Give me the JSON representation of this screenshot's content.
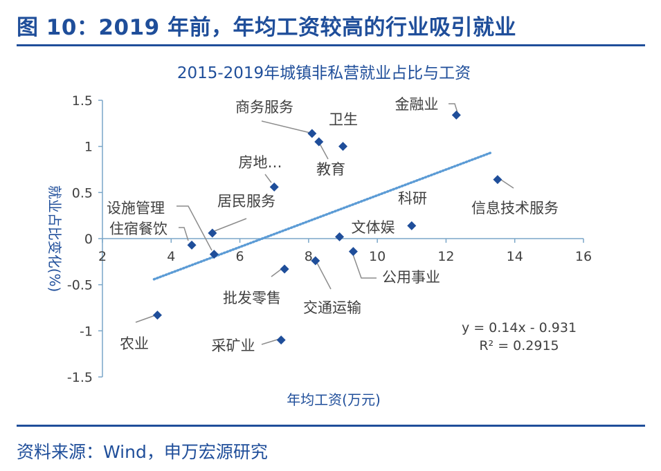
{
  "figure": {
    "title": "图 10：2019 年前，年均工资较高的行业吸引就业",
    "source": "资料来源：Wind，申万宏源研究"
  },
  "colors": {
    "brand": "#1f4e9a",
    "marker": "#1f4e9a",
    "axis": "#7aa6c8",
    "trend": "#5b9bd5",
    "text": "#404040",
    "leader": "#8c8c8c"
  },
  "chart_data": {
    "type": "scatter",
    "title": "2015-2019年城镇非私营就业占比与工资",
    "xlabel": "年均工资(万元)",
    "ylabel": "就业占比变化(%)",
    "xlim": [
      2,
      16
    ],
    "ylim": [
      -1.5,
      1.5
    ],
    "xticks": [
      "2",
      "4",
      "6",
      "8",
      "10",
      "12",
      "14",
      "16"
    ],
    "yticks": [
      "1.5",
      "1",
      "0.5",
      "0",
      "-0.5",
      "-1",
      "-1.5"
    ],
    "grid": false,
    "points": [
      {
        "label": "金融业",
        "x": 12.3,
        "y": 1.34
      },
      {
        "label": "商务服务",
        "x": 8.1,
        "y": 1.14
      },
      {
        "label": "卫生",
        "x": 9.0,
        "y": 1.0
      },
      {
        "label": "教育",
        "x": 8.3,
        "y": 1.05
      },
      {
        "label": "房地…",
        "x": 7.0,
        "y": 0.56
      },
      {
        "label": "信息技术服务",
        "x": 13.5,
        "y": 0.64
      },
      {
        "label": "居民服务",
        "x": 5.2,
        "y": 0.06
      },
      {
        "label": "设施管理",
        "x": 5.25,
        "y": -0.17
      },
      {
        "label": "住宿餐饮",
        "x": 4.6,
        "y": -0.07
      },
      {
        "label": "科研",
        "x": 11.0,
        "y": 0.14
      },
      {
        "label": "文体娱",
        "x": 8.9,
        "y": 0.02
      },
      {
        "label": "公用事业",
        "x": 9.3,
        "y": -0.14
      },
      {
        "label": "交通运输",
        "x": 8.2,
        "y": -0.24
      },
      {
        "label": "批发零售",
        "x": 7.3,
        "y": -0.33
      },
      {
        "label": "农业",
        "x": 3.6,
        "y": -0.83
      },
      {
        "label": "采矿业",
        "x": 7.2,
        "y": -1.1
      }
    ],
    "trendline": {
      "slope": 0.14,
      "intercept": -0.931,
      "x_range": [
        3.5,
        13.3
      ]
    },
    "annotation": [
      "y = 0.14x - 0.931",
      "R² = 0.2915"
    ]
  }
}
